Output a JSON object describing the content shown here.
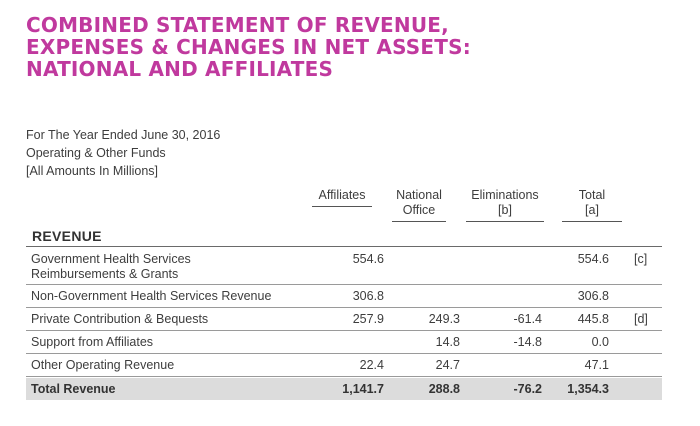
{
  "title": [
    "COMBINED STATEMENT OF REVENUE,",
    "EXPENSES & CHANGES IN NET ASSETS:",
    "NATIONAL AND AFFILIATES"
  ],
  "meta": [
    "For The Year Ended June 30, 2016",
    "Operating & Other Funds",
    "[All Amounts In Millions]"
  ],
  "columns": {
    "affiliates": [
      "Affiliates"
    ],
    "national": [
      "National",
      "Office"
    ],
    "eliminations": [
      "Eliminations",
      "[b]"
    ],
    "total": [
      "Total",
      "[a]"
    ]
  },
  "section": "REVENUE",
  "rows": [
    {
      "label": [
        "Government Health Services",
        "Reimbursements & Grants"
      ],
      "affiliates": "554.6",
      "national": "",
      "eliminations": "",
      "total": "554.6",
      "note": "[c]"
    },
    {
      "label": [
        "Non-Government Health Services Revenue"
      ],
      "affiliates": "306.8",
      "national": "",
      "eliminations": "",
      "total": "306.8",
      "note": ""
    },
    {
      "label": [
        "Private Contribution & Bequests"
      ],
      "affiliates": "257.9",
      "national": "249.3",
      "eliminations": "-61.4",
      "total": "445.8",
      "note": "[d]"
    },
    {
      "label": [
        "Support from Affiliates"
      ],
      "affiliates": "",
      "national": "14.8",
      "eliminations": "-14.8",
      "total": "0.0",
      "note": ""
    },
    {
      "label": [
        "Other Operating Revenue"
      ],
      "affiliates": "22.4",
      "national": "24.7",
      "eliminations": "",
      "total": "47.1",
      "note": ""
    }
  ],
  "total_row": {
    "label": "Total Revenue",
    "affiliates": "1,141.7",
    "national": "288.8",
    "eliminations": "-76.2",
    "total": "1,354.3"
  }
}
